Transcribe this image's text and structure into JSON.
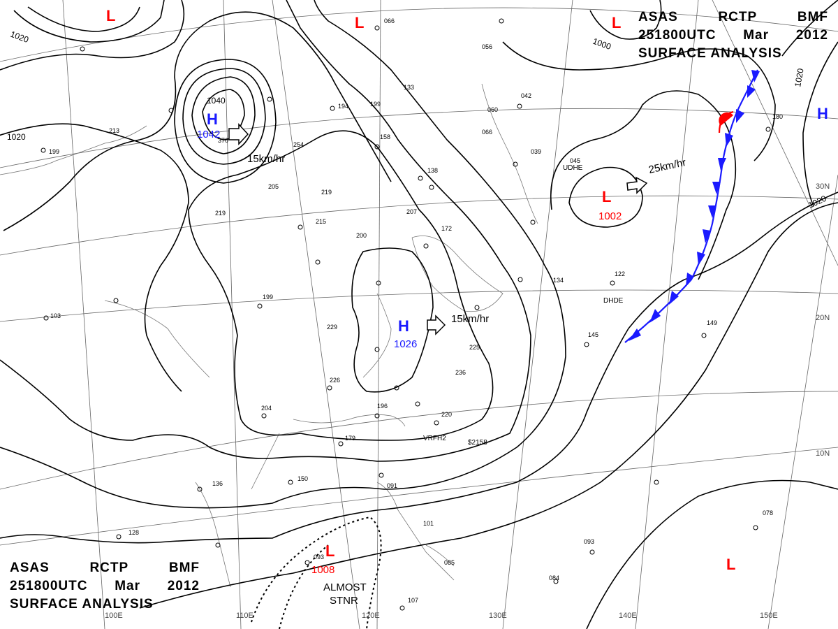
{
  "header": {
    "agency": [
      "ASAS",
      "RCTP",
      "BMF"
    ],
    "valid_time": [
      "251800UTC",
      "Mar",
      "2012"
    ],
    "product": "SURFACE ANALYSIS"
  },
  "colors": {
    "high": "#1a1aff",
    "low": "#ff0000",
    "cold_front": "#1a1aff",
    "warm_front": "#ff0000",
    "isobar": "#000000",
    "grid": "#555555"
  },
  "pressure_centers": [
    {
      "type": "H",
      "value": "1042",
      "motion": "15km/hr"
    },
    {
      "type": "H",
      "value": "1026",
      "motion": "15km/hr"
    },
    {
      "type": "L",
      "value": "1002",
      "motion": "25km/hr"
    },
    {
      "type": "L",
      "value": "1008",
      "motion": "ALMOST STNR"
    },
    {
      "type": "H",
      "value": ""
    },
    {
      "type": "L",
      "value": ""
    },
    {
      "type": "L",
      "value": ""
    },
    {
      "type": "L",
      "value": ""
    },
    {
      "type": "L",
      "value": ""
    }
  ],
  "isobar_labels": [
    "1020",
    "1040",
    "1020",
    "1000",
    "1020",
    "1020"
  ],
  "longitude_labels": [
    "100E",
    "110E",
    "120E",
    "130E",
    "140E",
    "150E"
  ],
  "latitude_labels": [
    "30N",
    "20N",
    "10N"
  ],
  "station_notes": [
    "VRFH2",
    "DHDE",
    "UDHE",
    "$2158"
  ],
  "station_values": [
    "066",
    "133",
    "138",
    "254",
    "215",
    "219",
    "207",
    "229",
    "226",
    "204",
    "196",
    "225",
    "236",
    "220",
    "179",
    "150",
    "128",
    "093",
    "101",
    "085",
    "107",
    "084",
    "093",
    "122",
    "145",
    "149",
    "180",
    "078",
    "045",
    "039",
    "042",
    "060",
    "066",
    "056",
    "199",
    "213",
    "205",
    "219",
    "200",
    "172",
    "134",
    "136",
    "199",
    "103",
    "370",
    "194",
    "158",
    "199",
    "091"
  ]
}
